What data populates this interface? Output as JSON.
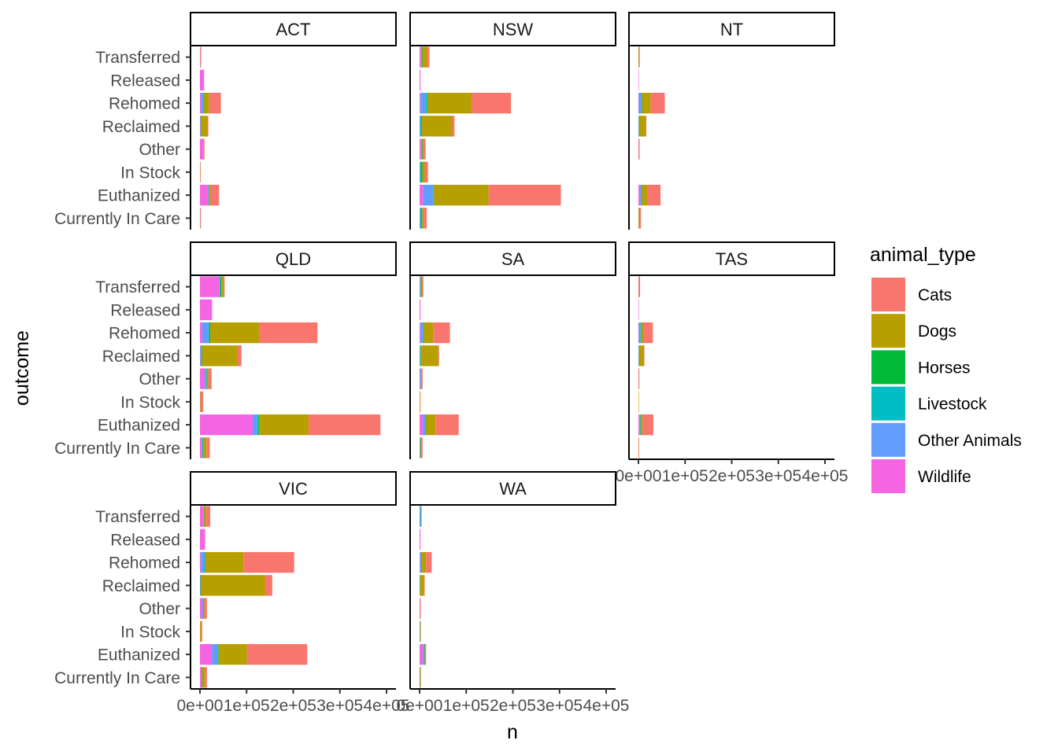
{
  "chart_data": {
    "type": "bar",
    "orientation": "horizontal",
    "stacked": true,
    "xlabel": "n",
    "ylabel": "outcome",
    "xlim": [
      0,
      400000
    ],
    "x_ticks": [
      0,
      100000,
      200000,
      300000,
      400000
    ],
    "x_tick_labels": [
      "0e+00",
      "1e+05",
      "2e+05",
      "3e+05",
      "4e+05"
    ],
    "categories": [
      "Currently In Care",
      "Euthanized",
      "In Stock",
      "Other",
      "Reclaimed",
      "Rehomed",
      "Released",
      "Transferred"
    ],
    "legend": {
      "title": "animal_type",
      "placement": "right",
      "entries": [
        {
          "name": "Cats",
          "color": "#F8766D"
        },
        {
          "name": "Dogs",
          "color": "#B79F00"
        },
        {
          "name": "Horses",
          "color": "#00BA38"
        },
        {
          "name": "Livestock",
          "color": "#00BFC4"
        },
        {
          "name": "Other Animals",
          "color": "#619CFF"
        },
        {
          "name": "Wildlife",
          "color": "#F564E3"
        }
      ]
    },
    "stack_order": [
      "Wildlife",
      "Other Animals",
      "Livestock",
      "Horses",
      "Dogs",
      "Cats"
    ],
    "panels": [
      {
        "name": "ACT",
        "values": {
          "Transferred": {
            "Wildlife": 1000,
            "Other Animals": 0,
            "Livestock": 0,
            "Horses": 0,
            "Dogs": 500,
            "Cats": 500
          },
          "Released": {
            "Wildlife": 9000,
            "Other Animals": 0,
            "Livestock": 0,
            "Horses": 0,
            "Dogs": 0,
            "Cats": 0
          },
          "Rehomed": {
            "Wildlife": 2000,
            "Other Animals": 6000,
            "Livestock": 500,
            "Horses": 500,
            "Dogs": 11000,
            "Cats": 25000
          },
          "Reclaimed": {
            "Wildlife": 500,
            "Other Animals": 1000,
            "Livestock": 500,
            "Horses": 0,
            "Dogs": 14000,
            "Cats": 2000
          },
          "Other": {
            "Wildlife": 7000,
            "Other Animals": 1000,
            "Livestock": 0,
            "Horses": 0,
            "Dogs": 1000,
            "Cats": 1000
          },
          "In Stock": {
            "Wildlife": 0,
            "Other Animals": 0,
            "Livestock": 0,
            "Horses": 0,
            "Dogs": 500,
            "Cats": 500
          },
          "Euthanized": {
            "Wildlife": 18000,
            "Other Animals": 1000,
            "Livestock": 500,
            "Horses": 500,
            "Dogs": 3000,
            "Cats": 18000
          },
          "Currently In Care": {
            "Wildlife": 500,
            "Other Animals": 0,
            "Livestock": 0,
            "Horses": 0,
            "Dogs": 500,
            "Cats": 1000
          }
        }
      },
      {
        "name": "NSW",
        "values": {
          "Transferred": {
            "Wildlife": 3000,
            "Other Animals": 1000,
            "Livestock": 1000,
            "Horses": 1000,
            "Dogs": 10000,
            "Cats": 5000
          },
          "Released": {
            "Wildlife": 2000,
            "Other Animals": 0,
            "Livestock": 0,
            "Horses": 0,
            "Dogs": 0,
            "Cats": 0
          },
          "Rehomed": {
            "Wildlife": 2000,
            "Other Animals": 12000,
            "Livestock": 2000,
            "Horses": 1000,
            "Dogs": 95000,
            "Cats": 84000
          },
          "Reclaimed": {
            "Wildlife": 500,
            "Other Animals": 1000,
            "Livestock": 2000,
            "Horses": 1500,
            "Dogs": 65000,
            "Cats": 5000
          },
          "Other": {
            "Wildlife": 3000,
            "Other Animals": 1000,
            "Livestock": 1000,
            "Horses": 1000,
            "Dogs": 3000,
            "Cats": 4000
          },
          "In Stock": {
            "Wildlife": 500,
            "Other Animals": 500,
            "Livestock": 2000,
            "Horses": 3000,
            "Dogs": 5000,
            "Cats": 7000
          },
          "Euthanized": {
            "Wildlife": 7000,
            "Other Animals": 22000,
            "Livestock": 1000,
            "Horses": 1000,
            "Dogs": 117000,
            "Cats": 155000
          },
          "Currently In Care": {
            "Wildlife": 1000,
            "Other Animals": 500,
            "Livestock": 2000,
            "Horses": 2000,
            "Dogs": 3000,
            "Cats": 7000
          }
        }
      },
      {
        "name": "NT",
        "values": {
          "Transferred": {
            "Wildlife": 500,
            "Other Animals": 0,
            "Livestock": 0,
            "Horses": 0,
            "Dogs": 1500,
            "Cats": 500
          },
          "Released": {
            "Wildlife": 800,
            "Other Animals": 0,
            "Livestock": 0,
            "Horses": 0,
            "Dogs": 0,
            "Cats": 0
          },
          "Rehomed": {
            "Wildlife": 500,
            "Other Animals": 6000,
            "Livestock": 500,
            "Horses": 500,
            "Dogs": 19000,
            "Cats": 30000
          },
          "Reclaimed": {
            "Wildlife": 0,
            "Other Animals": 500,
            "Livestock": 500,
            "Horses": 0,
            "Dogs": 15000,
            "Cats": 500
          },
          "Other": {
            "Wildlife": 1000,
            "Other Animals": 0,
            "Livestock": 0,
            "Horses": 0,
            "Dogs": 500,
            "Cats": 500
          },
          "In Stock": {
            "Wildlife": 0,
            "Other Animals": 0,
            "Livestock": 0,
            "Horses": 0,
            "Dogs": 0,
            "Cats": 0
          },
          "Euthanized": {
            "Wildlife": 4000,
            "Other Animals": 2000,
            "Livestock": 1000,
            "Horses": 500,
            "Dogs": 12000,
            "Cats": 28000
          },
          "Currently In Care": {
            "Wildlife": 500,
            "Other Animals": 0,
            "Livestock": 0,
            "Horses": 0,
            "Dogs": 3000,
            "Cats": 2000
          }
        }
      },
      {
        "name": "QLD",
        "values": {
          "Transferred": {
            "Wildlife": 41000,
            "Other Animals": 2000,
            "Livestock": 1000,
            "Horses": 2000,
            "Dogs": 5000,
            "Cats": 2000
          },
          "Released": {
            "Wildlife": 26000,
            "Other Animals": 0,
            "Livestock": 0,
            "Horses": 0,
            "Dogs": 0,
            "Cats": 0
          },
          "Rehomed": {
            "Wildlife": 5000,
            "Other Animals": 13000,
            "Livestock": 2000,
            "Horses": 2000,
            "Dogs": 106000,
            "Cats": 124000
          },
          "Reclaimed": {
            "Wildlife": 1000,
            "Other Animals": 1000,
            "Livestock": 2000,
            "Horses": 1000,
            "Dogs": 76000,
            "Cats": 8000
          },
          "Other": {
            "Wildlife": 10000,
            "Other Animals": 3000,
            "Livestock": 1000,
            "Horses": 1000,
            "Dogs": 3000,
            "Cats": 7000
          },
          "In Stock": {
            "Wildlife": 1000,
            "Other Animals": 0,
            "Livestock": 0,
            "Horses": 0,
            "Dogs": 3000,
            "Cats": 3000
          },
          "Euthanized": {
            "Wildlife": 113000,
            "Other Animals": 10000,
            "Livestock": 2000,
            "Horses": 2000,
            "Dogs": 106000,
            "Cats": 154000
          },
          "Currently In Care": {
            "Wildlife": 4000,
            "Other Animals": 1000,
            "Livestock": 1000,
            "Horses": 1000,
            "Dogs": 7000,
            "Cats": 7000
          }
        }
      },
      {
        "name": "SA",
        "values": {
          "Transferred": {
            "Wildlife": 1000,
            "Other Animals": 1000,
            "Livestock": 500,
            "Horses": 500,
            "Dogs": 3000,
            "Cats": 2000
          },
          "Released": {
            "Wildlife": 2000,
            "Other Animals": 0,
            "Livestock": 0,
            "Horses": 0,
            "Dogs": 0,
            "Cats": 0
          },
          "Rehomed": {
            "Wildlife": 2000,
            "Other Animals": 6000,
            "Livestock": 500,
            "Horses": 500,
            "Dogs": 20000,
            "Cats": 36000
          },
          "Reclaimed": {
            "Wildlife": 500,
            "Other Animals": 500,
            "Livestock": 1000,
            "Horses": 1000,
            "Dogs": 37000,
            "Cats": 2000
          },
          "Other": {
            "Wildlife": 2000,
            "Other Animals": 500,
            "Livestock": 500,
            "Horses": 500,
            "Dogs": 1000,
            "Cats": 2000
          },
          "In Stock": {
            "Wildlife": 0,
            "Other Animals": 0,
            "Livestock": 0,
            "Horses": 0,
            "Dogs": 1000,
            "Cats": 500
          },
          "Euthanized": {
            "Wildlife": 7000,
            "Other Animals": 6000,
            "Livestock": 500,
            "Horses": 500,
            "Dogs": 20000,
            "Cats": 50000
          },
          "Currently In Care": {
            "Wildlife": 1000,
            "Other Animals": 500,
            "Livestock": 500,
            "Horses": 500,
            "Dogs": 2000,
            "Cats": 2000
          }
        }
      },
      {
        "name": "TAS",
        "values": {
          "Transferred": {
            "Wildlife": 500,
            "Other Animals": 0,
            "Livestock": 0,
            "Horses": 0,
            "Dogs": 500,
            "Cats": 2500
          },
          "Released": {
            "Wildlife": 1000,
            "Other Animals": 0,
            "Livestock": 0,
            "Horses": 0,
            "Dogs": 0,
            "Cats": 0
          },
          "Rehomed": {
            "Wildlife": 500,
            "Other Animals": 4000,
            "Livestock": 1000,
            "Horses": 500,
            "Dogs": 6000,
            "Cats": 19000
          },
          "Reclaimed": {
            "Wildlife": 0,
            "Other Animals": 500,
            "Livestock": 500,
            "Horses": 0,
            "Dogs": 11000,
            "Cats": 1000
          },
          "Other": {
            "Wildlife": 500,
            "Other Animals": 0,
            "Livestock": 0,
            "Horses": 0,
            "Dogs": 500,
            "Cats": 500
          },
          "In Stock": {
            "Wildlife": 0,
            "Other Animals": 0,
            "Livestock": 0,
            "Horses": 0,
            "Dogs": 500,
            "Cats": 0
          },
          "Euthanized": {
            "Wildlife": 2000,
            "Other Animals": 2000,
            "Livestock": 500,
            "Horses": 500,
            "Dogs": 4000,
            "Cats": 23000
          },
          "Currently In Care": {
            "Wildlife": 0,
            "Other Animals": 0,
            "Livestock": 0,
            "Horses": 0,
            "Dogs": 500,
            "Cats": 1000
          }
        }
      },
      {
        "name": "VIC",
        "values": {
          "Transferred": {
            "Wildlife": 7000,
            "Other Animals": 1000,
            "Livestock": 500,
            "Horses": 500,
            "Dogs": 4000,
            "Cats": 9000
          },
          "Released": {
            "Wildlife": 11000,
            "Other Animals": 0,
            "Livestock": 0,
            "Horses": 0,
            "Dogs": 0,
            "Cats": 0
          },
          "Rehomed": {
            "Wildlife": 2000,
            "Other Animals": 8000,
            "Livestock": 1000,
            "Horses": 1000,
            "Dogs": 82000,
            "Cats": 108000
          },
          "Reclaimed": {
            "Wildlife": 500,
            "Other Animals": 500,
            "Livestock": 500,
            "Horses": 500,
            "Dogs": 138000,
            "Cats": 15000
          },
          "Other": {
            "Wildlife": 5000,
            "Other Animals": 2000,
            "Livestock": 500,
            "Horses": 500,
            "Dogs": 2000,
            "Cats": 5000
          },
          "In Stock": {
            "Wildlife": 0,
            "Other Animals": 0,
            "Livestock": 0,
            "Horses": 0,
            "Dogs": 2000,
            "Cats": 3000
          },
          "Euthanized": {
            "Wildlife": 26000,
            "Other Animals": 12000,
            "Livestock": 1000,
            "Horses": 1000,
            "Dogs": 61000,
            "Cats": 129000
          },
          "Currently In Care": {
            "Wildlife": 3000,
            "Other Animals": 500,
            "Livestock": 500,
            "Horses": 500,
            "Dogs": 6000,
            "Cats": 4500
          }
        }
      },
      {
        "name": "WA",
        "values": {
          "Transferred": {
            "Wildlife": 500,
            "Other Animals": 2000,
            "Livestock": 500,
            "Horses": 500,
            "Dogs": 0,
            "Cats": 0
          },
          "Released": {
            "Wildlife": 2000,
            "Other Animals": 0,
            "Livestock": 0,
            "Horses": 0,
            "Dogs": 0,
            "Cats": 0
          },
          "Rehomed": {
            "Wildlife": 1000,
            "Other Animals": 2000,
            "Livestock": 500,
            "Horses": 500,
            "Dogs": 10000,
            "Cats": 12000
          },
          "Reclaimed": {
            "Wildlife": 0,
            "Other Animals": 500,
            "Livestock": 500,
            "Horses": 0,
            "Dogs": 9000,
            "Cats": 1000
          },
          "Other": {
            "Wildlife": 1000,
            "Other Animals": 0,
            "Livestock": 0,
            "Horses": 0,
            "Dogs": 500,
            "Cats": 1000
          },
          "In Stock": {
            "Wildlife": 500,
            "Other Animals": 0,
            "Livestock": 500,
            "Horses": 500,
            "Dogs": 500,
            "Cats": 0
          },
          "Euthanized": {
            "Wildlife": 7000,
            "Other Animals": 3000,
            "Livestock": 500,
            "Horses": 500,
            "Dogs": 1000,
            "Cats": 2000
          },
          "Currently In Care": {
            "Wildlife": 0,
            "Other Animals": 0,
            "Livestock": 0,
            "Horses": 1000,
            "Dogs": 1000,
            "Cats": 500
          }
        }
      }
    ]
  }
}
